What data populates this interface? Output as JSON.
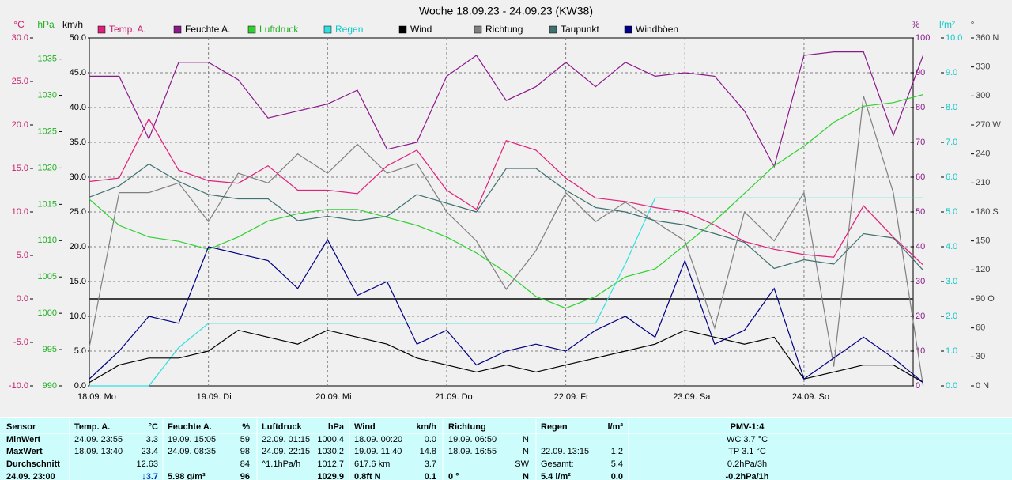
{
  "chart_data": {
    "type": "line",
    "title": "Woche 18.09.23 - 24.09.23 (KW38)",
    "x": [
      0,
      6,
      12,
      18,
      24,
      30,
      36,
      42,
      48,
      54,
      60,
      66,
      72,
      78,
      84,
      90,
      96,
      102,
      108,
      114,
      120,
      126,
      132,
      138,
      144,
      150,
      156,
      162,
      168
    ],
    "xlim": [
      0,
      166
    ],
    "xticks": [
      {
        "value": 0,
        "label": "18.09.  Mo"
      },
      {
        "value": 24,
        "label": "19.09.  Di"
      },
      {
        "value": 48,
        "label": "20.09.  Mi"
      },
      {
        "value": 72,
        "label": "21.09.  Do"
      },
      {
        "value": 96,
        "label": "22.09.  Fr"
      },
      {
        "value": 120,
        "label": "23.09.  Sa"
      },
      {
        "value": 144,
        "label": "24.09.  So"
      }
    ],
    "grid": true,
    "axes": [
      {
        "label": "°C",
        "color": "#c8206e",
        "lim": [
          -10,
          30
        ],
        "ticks": [
          {
            "value": -10,
            "label": "-10.0"
          },
          {
            "value": -5,
            "label": "-5.0"
          },
          {
            "value": 0,
            "label": "0.0"
          },
          {
            "value": 5,
            "label": "5.0"
          },
          {
            "value": 10,
            "label": "10.0"
          },
          {
            "value": 15,
            "label": "15.0"
          },
          {
            "value": 20,
            "label": "20.0"
          },
          {
            "value": 25,
            "label": "25.0"
          },
          {
            "value": 30,
            "label": "30.0"
          }
        ]
      },
      {
        "label": "hPa",
        "color": "#20b020",
        "lim": [
          990,
          1037.9
        ],
        "ticks": [
          990,
          995,
          1000,
          1005,
          1010,
          1015,
          1020,
          1025,
          1030,
          1035
        ]
      },
      {
        "label": "km/h",
        "color": "#000000",
        "lim": [
          0,
          50
        ],
        "ticks": [
          {
            "value": 0,
            "label": "0.0"
          },
          {
            "value": 5,
            "label": "5.0"
          },
          {
            "value": 10,
            "label": "10.0"
          },
          {
            "value": 15,
            "label": "15.0"
          },
          {
            "value": 20,
            "label": "20.0"
          },
          {
            "value": 25,
            "label": "25.0"
          },
          {
            "value": 30,
            "label": "30.0"
          },
          {
            "value": 35,
            "label": "35.0"
          },
          {
            "value": 40,
            "label": "40.0"
          },
          {
            "value": 45,
            "label": "45.0"
          },
          {
            "value": 50,
            "label": "50.0"
          }
        ]
      },
      {
        "label": "%",
        "color": "#8a1a8a",
        "lim": [
          0,
          100
        ],
        "ticks": [
          0,
          10,
          20,
          30,
          40,
          50,
          60,
          70,
          80,
          90,
          100
        ]
      },
      {
        "label": "l/m²",
        "color": "#10c8c8",
        "lim": [
          0,
          10
        ],
        "ticks": [
          {
            "value": 0,
            "label": "0.0"
          },
          {
            "value": 1,
            "label": "1.0"
          },
          {
            "value": 2,
            "label": "2.0"
          },
          {
            "value": 3,
            "label": "3.0"
          },
          {
            "value": 4,
            "label": "4.0"
          },
          {
            "value": 5,
            "label": "5.0"
          },
          {
            "value": 6,
            "label": "6.0"
          },
          {
            "value": 7,
            "label": "7.0"
          },
          {
            "value": 8,
            "label": "8.0"
          },
          {
            "value": 9,
            "label": "9.0"
          },
          {
            "value": 10,
            "label": "10.0"
          }
        ]
      },
      {
        "label": "°",
        "color": "#404040",
        "lim": [
          0,
          360
        ],
        "ticks": [
          {
            "value": 0,
            "label": "0 N"
          },
          30,
          60,
          {
            "value": 90,
            "label": "90 O"
          },
          120,
          150,
          {
            "value": 180,
            "label": "180 S"
          },
          210,
          240,
          {
            "value": 270,
            "label": "270 W"
          },
          300,
          330,
          {
            "value": 360,
            "label": "360 N"
          }
        ]
      }
    ],
    "series": [
      {
        "name": "Temp. A.",
        "color": "#e0207a",
        "axis": 0,
        "values": [
          13.5,
          13.9,
          20.7,
          14.8,
          13.6,
          13.3,
          15.3,
          12.5,
          12.5,
          12.1,
          15.3,
          17.1,
          12.5,
          10.3,
          18.2,
          17.1,
          13.9,
          11.6,
          11.2,
          10.5,
          10,
          8.5,
          6.6,
          5.7,
          5.1,
          4.8,
          10.7,
          7.1,
          3.9
        ]
      },
      {
        "name": "Feuchte A.",
        "color": "#8a1a8a",
        "axis": 3,
        "values": [
          89,
          89,
          71,
          93,
          93,
          88,
          77,
          79,
          81,
          85,
          68,
          70,
          89,
          95,
          82,
          86,
          93,
          86,
          93,
          89,
          90,
          89,
          79,
          63,
          95,
          96,
          96,
          72,
          95
        ]
      },
      {
        "name": "Luftdruck",
        "color": "#30d030",
        "axis": 1,
        "values": [
          1015.7,
          1012.1,
          1010.5,
          1009.9,
          1008.8,
          1010.5,
          1012.7,
          1013.7,
          1014.3,
          1014.3,
          1013.2,
          1012.1,
          1010.5,
          1008.3,
          1005.6,
          1002.3,
          1000.7,
          1002.3,
          1005,
          1006.1,
          1009.4,
          1012.7,
          1016.5,
          1020.3,
          1023,
          1026.3,
          1028.5,
          1029,
          1030.1
        ]
      },
      {
        "name": "Regen",
        "color": "#30e0e0",
        "axis": 4,
        "values": [
          0,
          0,
          0,
          1.1,
          1.8,
          1.8,
          1.8,
          1.8,
          1.8,
          1.8,
          1.8,
          1.8,
          1.8,
          1.8,
          1.8,
          1.8,
          1.8,
          1.8,
          3.5,
          5.4,
          5.4,
          5.4,
          5.4,
          5.4,
          5.4,
          5.4,
          5.4,
          5.4,
          5.4
        ]
      },
      {
        "name": "Wind",
        "color": "#000000",
        "axis": 2,
        "values": [
          0.5,
          3,
          4,
          4,
          5,
          8,
          7,
          6,
          8,
          7,
          6,
          4,
          3,
          2,
          3,
          2,
          3,
          4,
          5,
          6,
          8,
          7,
          6,
          7,
          1,
          2,
          3,
          3,
          0.5
        ]
      },
      {
        "name": "Richtung",
        "color": "#808080",
        "axis": 5,
        "values": [
          40,
          200,
          200,
          210,
          170,
          220,
          210,
          240,
          220,
          250,
          220,
          230,
          180,
          150,
          100,
          140,
          200,
          170,
          190,
          170,
          150,
          60,
          180,
          150,
          200,
          20,
          300,
          200,
          0
        ]
      },
      {
        "name": "Taupunkt",
        "color": "#407070",
        "axis": 0,
        "values": [
          11.7,
          13,
          15.5,
          13.5,
          12,
          11.5,
          11.5,
          9,
          9.5,
          9,
          9.5,
          12,
          11,
          10,
          15,
          15,
          12.5,
          10.5,
          10,
          9,
          8.5,
          7.5,
          6.5,
          3.5,
          4.5,
          4,
          7.5,
          7,
          3.3
        ]
      },
      {
        "name": "Windböen",
        "color": "#000080",
        "axis": 2,
        "values": [
          1,
          5,
          10,
          9,
          20,
          19,
          18,
          14,
          21,
          13,
          15,
          6,
          8,
          3,
          5,
          6,
          5,
          8,
          10,
          7,
          18,
          6,
          8,
          14,
          1,
          4,
          7,
          4,
          0.5
        ]
      }
    ]
  },
  "table": {
    "rows": [
      [
        "Sensor",
        "Temp. A.",
        "°C",
        "Feuchte A.",
        "%",
        "Luftdruck",
        "hPa",
        "Wind",
        "km/h",
        "Richtung",
        null,
        "Regen",
        "l/m²",
        "PMV-1:4"
      ],
      [
        "MinWert",
        "24.09.  23:55",
        "3.3",
        "19.09.  15:05",
        "59",
        "22.09.  01:15",
        "1000.4",
        "18.09.  00:20",
        "0.0",
        "19.09.  06:50",
        "N",
        null,
        null,
        "WC 3.7 °C"
      ],
      [
        "MaxWert",
        "18.09.  13:40",
        "23.4",
        "24.09.  08:35",
        "98",
        "24.09.  22:15",
        "1030.2",
        "19.09.  11:40",
        "14.8",
        "18.09.  16:55",
        "N",
        "22.09.  13:15",
        "1.2",
        "TP 3.1 °C"
      ],
      [
        "Durchschnitt",
        null,
        "12.63",
        null,
        "84",
        "^1.1hPa/h",
        "1012.7",
        "617.6 km",
        "3.7",
        null,
        "SW",
        "Gesamt:",
        "5.4",
        "0.2hPa/3h"
      ],
      [
        "24.09. 23:00",
        null,
        "↓3.7",
        "5.98 g/m³",
        "96",
        null,
        "1029.9",
        "0.8ft N",
        "0.1",
        "0 °",
        "N",
        "5.4 l/m²",
        "0.0",
        "-0.2hPa/1h"
      ]
    ]
  }
}
